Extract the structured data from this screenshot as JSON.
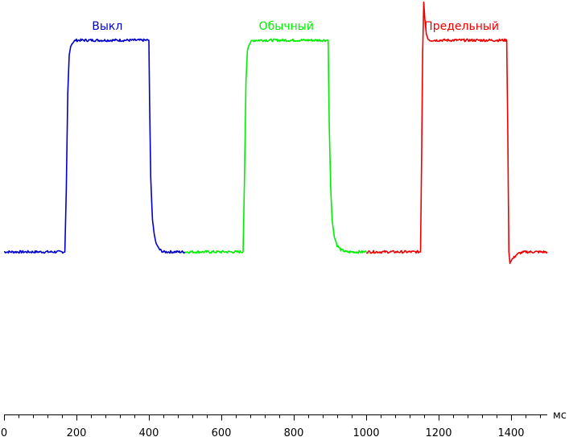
{
  "chart_data": {
    "type": "line",
    "xlabel": "мс",
    "xlim": [
      0,
      1500
    ],
    "x_ticks": [
      "0",
      "200",
      "400",
      "600",
      "800",
      "1000",
      "1200",
      "1400"
    ],
    "x_tick_values": [
      0,
      200,
      400,
      600,
      800,
      1000,
      1200,
      1400
    ],
    "x_minor_step": 40,
    "ylim": [
      -0.85,
      1.15
    ],
    "grid": false,
    "legend": "inline labels above each series",
    "series": [
      {
        "name": "Выкл",
        "color": "#0000cc",
        "x": [
          0,
          168,
          172,
          176,
          180,
          184,
          190,
          198,
          400,
          402,
          405,
          410,
          415,
          420,
          430,
          440,
          500
        ],
        "y": [
          0,
          0,
          0.3,
          0.75,
          0.93,
          0.97,
          0.99,
          1.0,
          1.0,
          0.7,
          0.35,
          0.15,
          0.08,
          0.04,
          0.01,
          0,
          0
        ]
      },
      {
        "name": "Обычный",
        "color": "#00ee00",
        "x": [
          500,
          660,
          664,
          668,
          672,
          676,
          684,
          692,
          895,
          898,
          902,
          906,
          912,
          920,
          930,
          945,
          1000
        ],
        "y": [
          0,
          0,
          0.35,
          0.8,
          0.95,
          0.98,
          0.995,
          1.0,
          1.0,
          0.6,
          0.3,
          0.15,
          0.07,
          0.03,
          0.01,
          0,
          0
        ]
      },
      {
        "name": "Предельный",
        "color": "#ee0000",
        "x": [
          1000,
          1150,
          1153,
          1156,
          1159,
          1162,
          1166,
          1170,
          1176,
          1184,
          1190,
          1388,
          1391,
          1394,
          1397,
          1400,
          1406,
          1414,
          1424,
          1440,
          1500
        ],
        "y": [
          0,
          0,
          0.45,
          0.95,
          1.18,
          1.1,
          1.03,
          1.01,
          1.0,
          1.0,
          1.0,
          1.0,
          0.55,
          0.0,
          -0.05,
          -0.04,
          -0.03,
          -0.015,
          -0.005,
          0,
          0
        ]
      }
    ]
  }
}
